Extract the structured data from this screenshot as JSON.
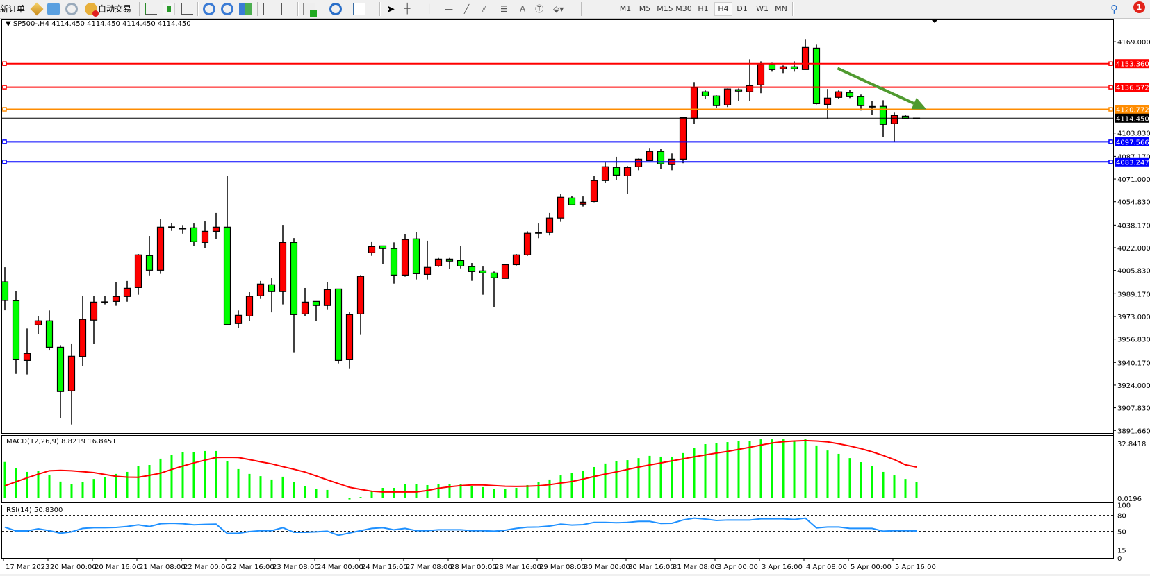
{
  "toolbar": {
    "new_order_label": "新订单",
    "auto_trading_label": "自动交易",
    "icons": [
      "order-book-icon",
      "market-watch-icon",
      "signals-icon",
      "auto-trading-icon",
      "bar-chart-icon",
      "candlestick-icon",
      "line-chart-icon",
      "zoom-in-icon",
      "zoom-out-icon",
      "tile-windows-icon",
      "auto-scroll-icon",
      "chart-shift-icon",
      "indicators-icon",
      "periods-icon",
      "templates-icon",
      "cursor-icon",
      "crosshair-icon",
      "vertical-line-icon",
      "horizontal-line-icon",
      "trendline-icon",
      "equidistant-channel-icon",
      "fibonacci-icon",
      "text-icon",
      "text-label-icon",
      "arrows-icon"
    ],
    "text_tool_label": "A",
    "periods": [
      "M1",
      "M5",
      "M15",
      "M30",
      "H1",
      "H4",
      "D1",
      "W1",
      "MN"
    ],
    "active_period": "H4",
    "notification_count": "1"
  },
  "chart": {
    "title": "SP500-,H4  4114.450 4114.450 4114.450 4114.450",
    "bull_color": "#ff0000",
    "bear_color": "#00ff00",
    "price_axis_labels": [
      "4169.000",
      "4103.830",
      "4087.170",
      "4071.000",
      "4054.830",
      "4038.170",
      "4022.000",
      "4005.830",
      "3989.170",
      "3973.000",
      "3956.830",
      "3940.170",
      "3924.000",
      "3907.830",
      "3891.660"
    ],
    "price_range": [
      3891.66,
      4169.0
    ],
    "levels": [
      {
        "price": 4153.36,
        "label": "4153.360",
        "color": "#ff0000"
      },
      {
        "price": 4136.572,
        "label": "4136.572",
        "color": "#ff0000"
      },
      {
        "price": 4120.772,
        "label": "4120.772",
        "color": "#ff8c00"
      },
      {
        "price": 4097.566,
        "label": "4097.566",
        "color": "#0000ff"
      },
      {
        "price": 4083.247,
        "label": "4083.247",
        "color": "#0000ff"
      }
    ],
    "bid": {
      "price": 4114.45,
      "label": "4114.450",
      "color": "#000000"
    },
    "arrow": {
      "color": "#4f9a2f",
      "from": {
        "bar": 74.9,
        "price": 4150.0
      },
      "to": {
        "bar": 82.9,
        "price": 4120.8
      }
    },
    "time_labels": [
      "17 Mar 2023",
      "20 Mar 00:00",
      "20 Mar 16:00",
      "21 Mar 08:00",
      "22 Mar 00:00",
      "22 Mar 16:00",
      "23 Mar 08:00",
      "24 Mar 00:00",
      "24 Mar 16:00",
      "27 Mar 08:00",
      "28 Mar 00:00",
      "28 Mar 16:00",
      "29 Mar 08:00",
      "30 Mar 00:00",
      "30 Mar 16:00",
      "31 Mar 08:00",
      "3 Apr 00:00",
      "3 Apr 16:00",
      "4 Apr 08:00",
      "5 Apr 00:00",
      "5 Apr 16:00"
    ],
    "candles_ohlc": [
      [
        3997.7,
        4008.1,
        3977.4,
        3984.4
      ],
      [
        3984.2,
        3991.3,
        3932.0,
        3942.1
      ],
      [
        3941.6,
        3964.4,
        3931.6,
        3946.6
      ],
      [
        3966.9,
        3973.3,
        3960.3,
        3969.9
      ],
      [
        3969.9,
        3977.3,
        3948.7,
        3951.0
      ],
      [
        3951.0,
        3952.5,
        3900.4,
        3919.4
      ],
      [
        3919.9,
        3953.7,
        3895.9,
        3944.6
      ],
      [
        3944.4,
        3987.8,
        3937.5,
        3970.9
      ],
      [
        3970.4,
        3987.8,
        3953.3,
        3983.2
      ],
      [
        3983.5,
        3987.8,
        3981.6,
        3983.5
      ],
      [
        3983.7,
        3997.3,
        3980.6,
        3987.2
      ],
      [
        3987.2,
        3998.3,
        3983.5,
        3993.1
      ],
      [
        3993.6,
        4017.5,
        3988.5,
        4016.9
      ],
      [
        4016.4,
        4030.4,
        4002.3,
        4006.0
      ],
      [
        4006.0,
        4042.3,
        4003.4,
        4036.7
      ],
      [
        4037.0,
        4039.8,
        4034.0,
        4037.0
      ],
      [
        4036.0,
        4038.2,
        4032.0,
        4035.9
      ],
      [
        4036.2,
        4039.3,
        4023.2,
        4026.3
      ],
      [
        4025.8,
        4040.8,
        4021.7,
        4033.7
      ],
      [
        4033.7,
        4046.8,
        4028.1,
        4036.7
      ],
      [
        4036.7,
        4073.0,
        3966.7,
        3967.2
      ],
      [
        3967.9,
        3977.3,
        3964.7,
        3973.8
      ],
      [
        3973.3,
        3990.3,
        3969.7,
        3987.3
      ],
      [
        3987.7,
        3998.3,
        3985.5,
        3996.1
      ],
      [
        3995.6,
        4000.2,
        3975.9,
        3990.7
      ],
      [
        3990.7,
        4038.3,
        3981.6,
        4025.8
      ],
      [
        4025.8,
        4028.9,
        3947.4,
        3974.3
      ],
      [
        3974.8,
        3993.3,
        3973.2,
        3983.2
      ],
      [
        3983.7,
        3983.7,
        3969.7,
        3980.8
      ],
      [
        3980.8,
        3997.3,
        3978.1,
        3992.1
      ],
      [
        3992.6,
        3992.6,
        3939.5,
        3941.6
      ],
      [
        3942.1,
        3975.9,
        3936.0,
        3974.3
      ],
      [
        3974.8,
        4002.5,
        3959.8,
        4001.6
      ],
      [
        4018.4,
        4026.5,
        4016.2,
        4022.8
      ],
      [
        4023.3,
        4023.3,
        4010.3,
        4021.4
      ],
      [
        4021.4,
        4025.8,
        3996.4,
        4002.5
      ],
      [
        4002.5,
        4031.9,
        4001.4,
        4027.8
      ],
      [
        4028.3,
        4032.9,
        3999.4,
        4003.5
      ],
      [
        4003.0,
        4027.0,
        3999.4,
        4008.0
      ],
      [
        4009.0,
        4014.7,
        4008.3,
        4013.9
      ],
      [
        4013.9,
        4014.7,
        4006.8,
        4012.5
      ],
      [
        4012.9,
        4023.0,
        4007.3,
        4009.0
      ],
      [
        4008.5,
        4011.1,
        3998.4,
        4005.0
      ],
      [
        4005.5,
        4008.6,
        3988.5,
        4004.0
      ],
      [
        4004.0,
        4005.0,
        3979.6,
        4000.6
      ],
      [
        4000.1,
        4010.4,
        4000.1,
        4009.9
      ],
      [
        4009.9,
        4017.5,
        4009.3,
        4016.9
      ],
      [
        4016.9,
        4033.7,
        4016.2,
        4032.3
      ],
      [
        4032.8,
        4039.3,
        4028.8,
        4032.8
      ],
      [
        4032.8,
        4046.8,
        4030.8,
        4043.2
      ],
      [
        4043.2,
        4060.6,
        4040.5,
        4058.0
      ],
      [
        4057.5,
        4058.9,
        4052.6,
        4052.6
      ],
      [
        4053.1,
        4058.6,
        4051.4,
        4054.5
      ],
      [
        4055.0,
        4073.5,
        4054.5,
        4069.9
      ],
      [
        4069.9,
        4082.8,
        4068.2,
        4079.8
      ],
      [
        4079.3,
        4086.9,
        4070.2,
        4073.8
      ],
      [
        4073.3,
        4080.3,
        4060.3,
        4079.3
      ],
      [
        4079.8,
        4085.7,
        4077.3,
        4085.2
      ],
      [
        4084.2,
        4093.2,
        4084.2,
        4090.7
      ],
      [
        4090.7,
        4092.7,
        4078.3,
        4081.8
      ],
      [
        4081.3,
        4089.2,
        4077.3,
        4085.2
      ],
      [
        4085.2,
        4114.9,
        4082.3,
        4114.9
      ],
      [
        4114.4,
        4140.2,
        4110.5,
        4136.2
      ],
      [
        4133.3,
        4134.3,
        4128.3,
        4130.3
      ],
      [
        4130.3,
        4130.8,
        4121.9,
        4123.4
      ],
      [
        4123.9,
        4135.7,
        4122.4,
        4135.3
      ],
      [
        4134.8,
        4135.7,
        4126.8,
        4133.8
      ],
      [
        4133.3,
        4156.5,
        4126.8,
        4137.7
      ],
      [
        4138.2,
        4155.0,
        4132.3,
        4152.6
      ],
      [
        4152.6,
        4154.0,
        4147.6,
        4149.1
      ],
      [
        4149.6,
        4152.1,
        4146.6,
        4151.1
      ],
      [
        4151.1,
        4155.0,
        4147.6,
        4149.6
      ],
      [
        4149.1,
        4170.9,
        4149.1,
        4164.9
      ],
      [
        4164.4,
        4166.9,
        4124.3,
        4124.8
      ],
      [
        4124.3,
        4135.3,
        4113.9,
        4128.8
      ],
      [
        4129.3,
        4134.3,
        4128.3,
        4133.3
      ],
      [
        4132.8,
        4134.8,
        4128.8,
        4129.8
      ],
      [
        4129.8,
        4131.3,
        4119.9,
        4123.4
      ],
      [
        4122.9,
        4126.8,
        4116.9,
        4122.9
      ],
      [
        4122.9,
        4127.3,
        4101.1,
        4110.0
      ],
      [
        4110.5,
        4118.4,
        4097.6,
        4116.4
      ],
      [
        4115.9,
        4116.9,
        4114.4,
        4114.4
      ],
      [
        4114.5,
        4114.5,
        4114.45,
        4114.45
      ]
    ]
  },
  "macd": {
    "label": "MACD(12,26,9) 8.8219 16.8451",
    "axis_labels": [
      "32.8418",
      "0.0196"
    ],
    "hist_color": "#00ff00",
    "signal_color": "#ff0000",
    "histogram": [
      19.5,
      16.4,
      14.2,
      14.6,
      12.7,
      9.0,
      7.6,
      8.6,
      10.4,
      11.3,
      13.1,
      14.2,
      17.2,
      17.9,
      21.3,
      23.5,
      25.0,
      25.0,
      25.4,
      25.4,
      19.8,
      15.7,
      13.1,
      11.9,
      10.1,
      11.6,
      8.6,
      6.7,
      5.2,
      4.5,
      0.3,
      -0.6,
      0.7,
      3.7,
      5.6,
      5.6,
      7.8,
      7.5,
      7.1,
      7.5,
      7.8,
      7.5,
      6.7,
      6.0,
      5.2,
      5.2,
      5.6,
      7.1,
      8.6,
      10.1,
      12.3,
      13.8,
      14.9,
      16.8,
      18.7,
      19.8,
      20.5,
      21.6,
      22.8,
      22.4,
      22.4,
      24.3,
      27.2,
      29.1,
      29.5,
      30.2,
      30.6,
      30.6,
      31.7,
      31.7,
      31.7,
      31.0,
      31.7,
      28.4,
      25.7,
      23.9,
      21.6,
      19.4,
      17.2,
      14.2,
      12.3,
      10.4,
      8.8
    ],
    "signal": [
      6.7,
      8.9,
      11.0,
      13.0,
      14.8,
      15.0,
      14.8,
      14.3,
      13.8,
      12.8,
      11.8,
      11.4,
      11.3,
      12.3,
      13.5,
      15.5,
      17.3,
      19.0,
      20.5,
      21.9,
      22.0,
      21.9,
      20.8,
      19.6,
      18.5,
      17.0,
      15.6,
      14.1,
      12.0,
      9.9,
      7.9,
      5.9,
      4.8,
      3.8,
      3.4,
      3.4,
      3.4,
      3.4,
      4.2,
      5.4,
      6.2,
      6.8,
      7.2,
      7.2,
      6.8,
      6.5,
      6.4,
      6.5,
      6.7,
      7.3,
      8.2,
      9.0,
      10.3,
      11.7,
      13.0,
      14.2,
      15.5,
      16.8,
      17.9,
      19.0,
      20.1,
      21.2,
      22.3,
      23.3,
      24.3,
      25.2,
      26.3,
      27.4,
      28.6,
      29.7,
      30.4,
      30.8,
      31.0,
      30.8,
      30.3,
      29.3,
      28.1,
      26.7,
      25.0,
      23.0,
      20.8,
      18.0,
      16.8
    ]
  },
  "rsi": {
    "label": "RSI(14) 50.8300",
    "axis_labels": [
      "100",
      "80",
      "50",
      "15",
      "0"
    ],
    "levels": [
      80,
      50,
      15
    ],
    "color": "#1e90ff",
    "values": [
      57.8,
      50.9,
      50.9,
      54.8,
      51.3,
      46.5,
      49.1,
      55.6,
      56.9,
      56.9,
      57.3,
      59.1,
      62.2,
      59.1,
      64.4,
      65.2,
      64.4,
      62.2,
      63.1,
      63.5,
      46.1,
      46.5,
      49.6,
      51.3,
      51.3,
      56.9,
      48.3,
      48.3,
      49.1,
      50.4,
      42.6,
      46.9,
      51.3,
      55.6,
      56.9,
      52.9,
      55.6,
      51.3,
      51.3,
      52.9,
      52.9,
      52.9,
      51.3,
      51.3,
      50.4,
      52.2,
      55.6,
      57.8,
      58.2,
      60.0,
      63.5,
      61.7,
      62.6,
      66.9,
      66.9,
      66.1,
      66.9,
      68.7,
      68.7,
      64.8,
      65.2,
      71.3,
      74.8,
      73.0,
      70.4,
      71.3,
      71.3,
      71.3,
      73.5,
      73.5,
      73.5,
      72.2,
      74.8,
      56.5,
      58.2,
      58.2,
      55.6,
      55.6,
      55.6,
      50.4,
      51.3,
      51.3,
      50.9
    ]
  }
}
